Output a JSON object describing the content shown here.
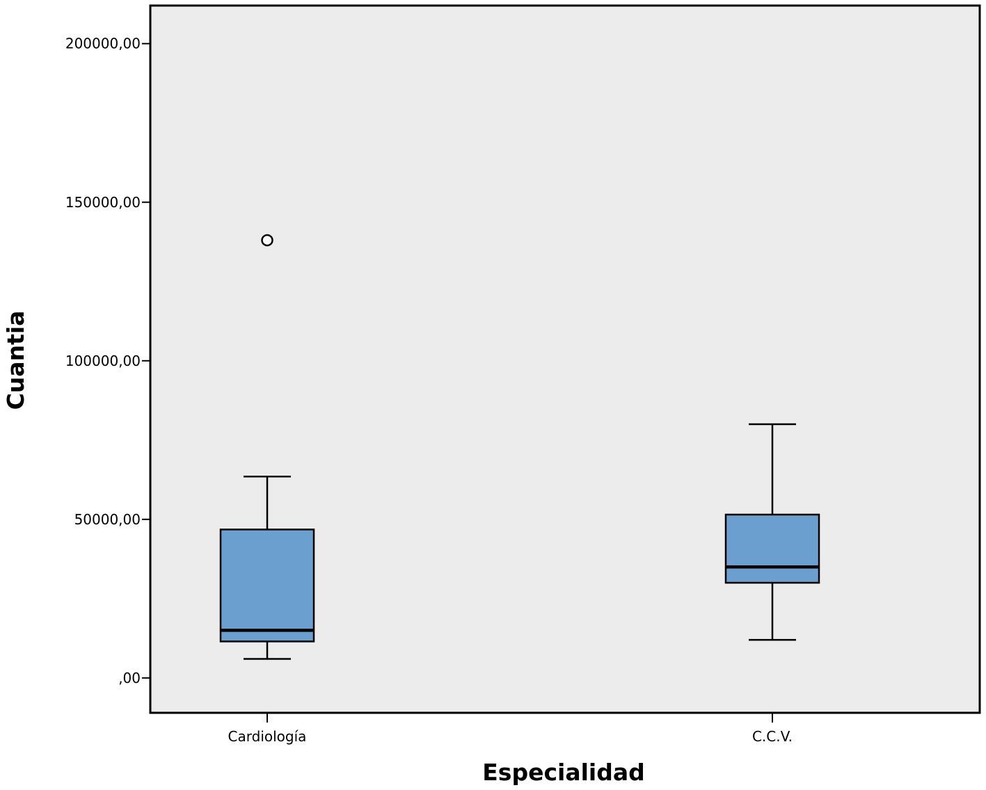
{
  "chart_data": {
    "type": "boxplot",
    "xlabel": "Especialidad",
    "ylabel": "Cuantia",
    "categories": [
      "Cardiología",
      "C.C.V."
    ],
    "yticks": [
      0,
      50000,
      100000,
      150000,
      200000
    ],
    "ytick_labels": [
      ",00",
      "50000,00",
      "100000,00",
      "150000,00",
      "200000,00"
    ],
    "ylim": [
      -11000,
      212000
    ],
    "grid": false,
    "box_color": "#6b9fcf",
    "plot_background": "#ececec",
    "boxes": [
      {
        "category": "Cardiología",
        "whisker_low": 6000,
        "q1": 11500,
        "median": 15000,
        "q3": 46800,
        "whisker_high": 63500,
        "outliers": [
          138000
        ]
      },
      {
        "category": "C.C.V.",
        "whisker_low": 12000,
        "q1": 30000,
        "median": 35000,
        "q3": 51500,
        "whisker_high": 80000,
        "outliers": []
      }
    ]
  }
}
